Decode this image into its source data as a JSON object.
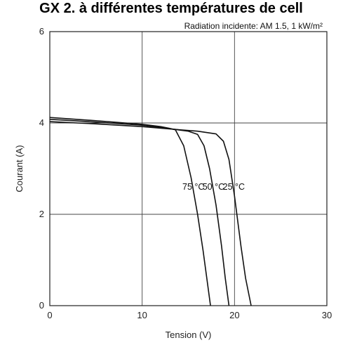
{
  "header": {
    "title": "GX 2. à différentes températures de cell"
  },
  "chart_data": {
    "type": "line",
    "title": "",
    "annotation": "Radiation incidente: AM 1.5, 1 kW/m²",
    "xlabel": "Tension (V)",
    "ylabel": "Courant (A)",
    "xlim": [
      0,
      30
    ],
    "ylim": [
      0,
      6
    ],
    "xticks": [
      "0",
      "10",
      "20",
      "30"
    ],
    "yticks": [
      "0",
      "2",
      "4",
      "6"
    ],
    "grid": true,
    "series": [
      {
        "name": "75 °C",
        "x": [
          0,
          5,
          10,
          12,
          13,
          13.6,
          14.5,
          15.3,
          16.0,
          16.6,
          17.0,
          17.4
        ],
        "y": [
          4.12,
          4.05,
          3.97,
          3.92,
          3.88,
          3.85,
          3.5,
          2.8,
          2.0,
          1.2,
          0.6,
          0
        ]
      },
      {
        "name": "50 °C",
        "x": [
          0,
          5,
          10,
          13.5,
          15,
          16,
          16.7,
          17.3,
          18.0,
          18.6,
          19.0,
          19.4
        ],
        "y": [
          4.08,
          4.02,
          3.95,
          3.86,
          3.82,
          3.75,
          3.5,
          3.0,
          2.2,
          1.3,
          0.6,
          0
        ]
      },
      {
        "name": "25 °C",
        "x": [
          0,
          5,
          10,
          13.5,
          16,
          18,
          18.8,
          19.4,
          20.0,
          20.7,
          21.2,
          21.8
        ],
        "y": [
          4.03,
          3.98,
          3.92,
          3.86,
          3.82,
          3.76,
          3.6,
          3.2,
          2.4,
          1.3,
          0.6,
          0
        ]
      }
    ]
  }
}
